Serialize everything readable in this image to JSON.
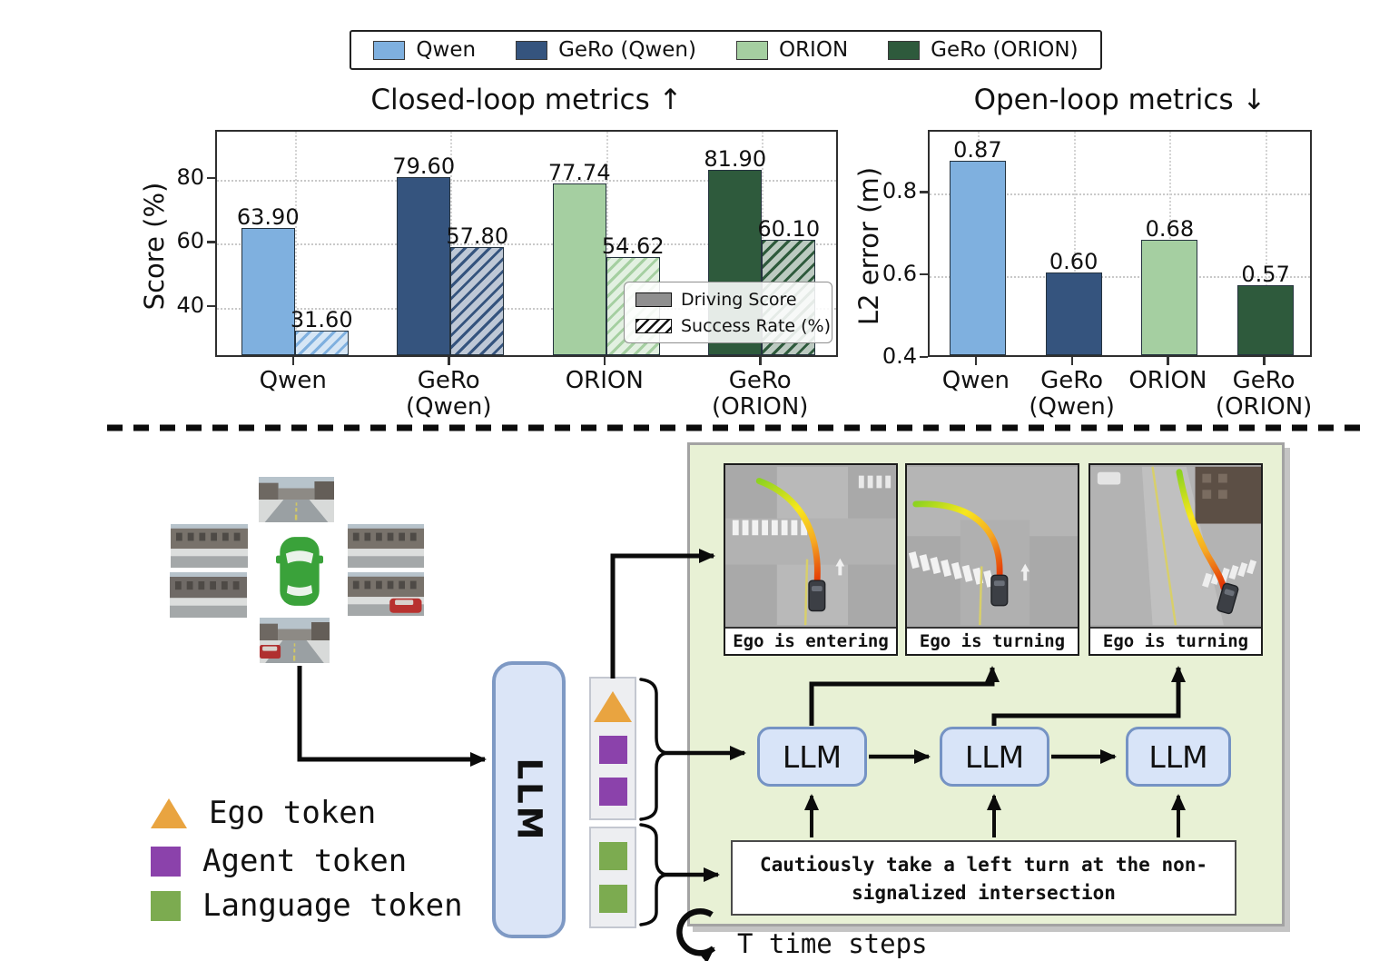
{
  "top_legend": {
    "items": [
      {
        "label": "Qwen",
        "color": "#7fb0df"
      },
      {
        "label": "GeRo (Qwen)",
        "color": "#35547e"
      },
      {
        "label": "ORION",
        "color": "#a5cfa1"
      },
      {
        "label": "GeRo (ORION)",
        "color": "#2e5a3c"
      }
    ]
  },
  "chart_data": [
    {
      "type": "bar",
      "title": "Closed-loop metrics ↑",
      "ylabel": "Score (%)",
      "ylim": [
        24,
        95
      ],
      "yticks": [
        "40",
        "60",
        "80"
      ],
      "ytick_values": [
        40,
        60,
        80
      ],
      "grid": true,
      "categories": [
        "Qwen",
        "GeRo\n(Qwen)",
        "ORION",
        "GeRo\n(ORION)"
      ],
      "series": [
        {
          "name": "Driving Score",
          "style": "solid",
          "values": [
            63.9,
            79.6,
            77.74,
            81.9
          ],
          "labels": [
            "63.90",
            "79.60",
            "77.74",
            "81.90"
          ]
        },
        {
          "name": "Success Rate (%)",
          "style": "hatched",
          "values": [
            31.6,
            57.8,
            54.62,
            60.1
          ],
          "labels": [
            "31.60",
            "57.80",
            "54.62",
            "60.10"
          ]
        }
      ],
      "category_colors": [
        "#7fb0df",
        "#35547e",
        "#a5cfa1",
        "#2e5a3c"
      ],
      "legend": {
        "items": [
          "Driving Score",
          "Success Rate (%)"
        ],
        "position": "lower right"
      }
    },
    {
      "type": "bar",
      "title": "Open-loop metrics ↓",
      "ylabel": "L2 error (m)",
      "ylim": [
        0.4,
        0.95
      ],
      "yticks": [
        "0.4",
        "0.6",
        "0.8"
      ],
      "ytick_values": [
        0.4,
        0.6,
        0.8
      ],
      "grid": true,
      "categories": [
        "Qwen",
        "GeRo\n(Qwen)",
        "ORION",
        "GeRo\n(ORION)"
      ],
      "values": [
        0.87,
        0.6,
        0.68,
        0.57
      ],
      "labels": [
        "0.87",
        "0.60",
        "0.68",
        "0.57"
      ],
      "bar_colors": [
        "#7fb0df",
        "#35547e",
        "#a5cfa1",
        "#2e5a3c"
      ]
    }
  ],
  "diagram": {
    "main_llm_label": "LLM",
    "chain_llm_labels": [
      "LLM",
      "LLM",
      "LLM"
    ],
    "bev_cards": [
      {
        "caption": "Ego is entering"
      },
      {
        "caption": "Ego is turning"
      },
      {
        "caption": "Ego is turning"
      }
    ],
    "instruction": {
      "line1": "Cautiously take a left turn at the non-",
      "line2": "signalized intersection"
    },
    "time_steps_label": "T time steps",
    "token_legend": [
      {
        "label": "Ego token",
        "shape": "triangle",
        "color": "#e9a440"
      },
      {
        "label": "Agent token",
        "shape": "square",
        "color": "#8b42ab"
      },
      {
        "label": "Language token",
        "shape": "square",
        "color": "#7cab50"
      }
    ],
    "token_stacks": [
      {
        "tokens": [
          "ego",
          "agent",
          "agent"
        ]
      },
      {
        "tokens": [
          "language",
          "language"
        ]
      }
    ],
    "colors": {
      "panel_bg": "#e8f1d5",
      "llm_fill": "#dbe5f7",
      "llm_border": "#7e99c4",
      "ego": "#e9a440",
      "agent": "#8b42ab",
      "language": "#7cab50"
    }
  }
}
